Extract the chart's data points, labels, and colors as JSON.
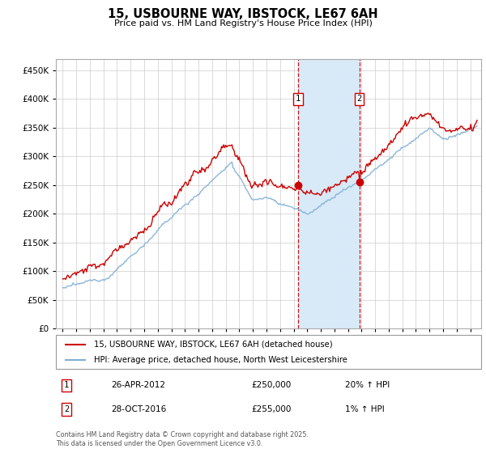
{
  "title": "15, USBOURNE WAY, IBSTOCK, LE67 6AH",
  "subtitle": "Price paid vs. HM Land Registry's House Price Index (HPI)",
  "ylim": [
    0,
    470000
  ],
  "sale1_x": 2012.32,
  "sale2_x": 2016.83,
  "sale1_price": 250000,
  "sale2_price": 255000,
  "legend_line1": "15, USBOURNE WAY, IBSTOCK, LE67 6AH (detached house)",
  "legend_line2": "HPI: Average price, detached house, North West Leicestershire",
  "footer": "Contains HM Land Registry data © Crown copyright and database right 2025.\nThis data is licensed under the Open Government Licence v3.0.",
  "red_color": "#cc0000",
  "blue_color": "#7fafd4",
  "shading_color": "#d8eaf7",
  "grid_color": "#cccccc",
  "background": "#ffffff",
  "sale1_date": "26-APR-2012",
  "sale2_date": "28-OCT-2016",
  "sale1_hpi": "20% ↑ HPI",
  "sale2_hpi": "1% ↑ HPI"
}
